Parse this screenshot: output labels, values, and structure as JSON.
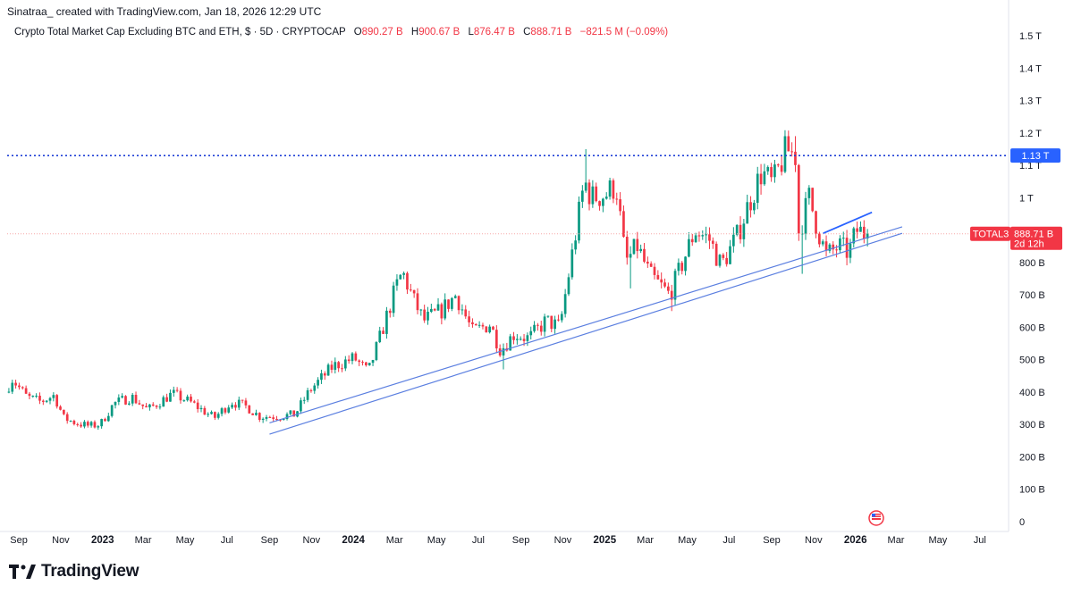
{
  "header": {
    "author_line": "Sinatraa_ created with TradingView.com, Jan 18, 2026 12:29 UTC",
    "symbol_description": "Crypto Total Market Cap Excluding BTC and ETH, $ · 5D · CRYPTOCAP",
    "ohlc": {
      "open_key": "O",
      "open": "890.27 B",
      "high_key": "H",
      "high": "900.67 B",
      "low_key": "L",
      "low": "876.47 B",
      "close_key": "C",
      "close": "888.71 B",
      "change": "−821.5 M (−0.09%)"
    }
  },
  "brand": {
    "name": "TradingView"
  },
  "colors": {
    "up": "#089981",
    "down": "#f23645",
    "trendline": "#2962ff",
    "channel": "#5b7fe0",
    "resistance": "#1e3fd6",
    "price_line": "#f7a8a8",
    "resistance_label_bg": "#2962ff",
    "price_label_bg": "#f23645"
  },
  "chart_data": {
    "type": "candlestick",
    "symbol": "TOTAL3",
    "interval": "5D",
    "y_scale": {
      "min": 0,
      "max": 1500,
      "unit": "B"
    },
    "y_ticks": [
      {
        "value": 1500,
        "label": "1.5 T"
      },
      {
        "value": 1400,
        "label": "1.4 T"
      },
      {
        "value": 1300,
        "label": "1.3 T"
      },
      {
        "value": 1200,
        "label": "1.2 T"
      },
      {
        "value": 1100,
        "label": "1.1 T"
      },
      {
        "value": 1000,
        "label": "1 T"
      },
      {
        "value": 800,
        "label": "800 B"
      },
      {
        "value": 700,
        "label": "700 B"
      },
      {
        "value": 600,
        "label": "600 B"
      },
      {
        "value": 500,
        "label": "500 B"
      },
      {
        "value": 400,
        "label": "400 B"
      },
      {
        "value": 300,
        "label": "300 B"
      },
      {
        "value": 200,
        "label": "200 B"
      },
      {
        "value": 100,
        "label": "100 B"
      },
      {
        "value": 0,
        "label": "0"
      }
    ],
    "x_range": [
      "2022-08-15",
      "2026-08-12"
    ],
    "x_ticks": [
      {
        "date": "2022-09-01",
        "label": "Sep",
        "bold": false
      },
      {
        "date": "2022-11-01",
        "label": "Nov",
        "bold": false
      },
      {
        "date": "2023-01-01",
        "label": "2023",
        "bold": true
      },
      {
        "date": "2023-03-01",
        "label": "Mar",
        "bold": false
      },
      {
        "date": "2023-05-01",
        "label": "May",
        "bold": false
      },
      {
        "date": "2023-07-01",
        "label": "Jul",
        "bold": false
      },
      {
        "date": "2023-09-01",
        "label": "Sep",
        "bold": false
      },
      {
        "date": "2023-11-01",
        "label": "Nov",
        "bold": false
      },
      {
        "date": "2024-01-01",
        "label": "2024",
        "bold": true
      },
      {
        "date": "2024-03-01",
        "label": "Mar",
        "bold": false
      },
      {
        "date": "2024-05-01",
        "label": "May",
        "bold": false
      },
      {
        "date": "2024-07-01",
        "label": "Jul",
        "bold": false
      },
      {
        "date": "2024-09-01",
        "label": "Sep",
        "bold": false
      },
      {
        "date": "2024-11-01",
        "label": "Nov",
        "bold": false
      },
      {
        "date": "2025-01-01",
        "label": "2025",
        "bold": true
      },
      {
        "date": "2025-03-01",
        "label": "Mar",
        "bold": false
      },
      {
        "date": "2025-05-01",
        "label": "May",
        "bold": false
      },
      {
        "date": "2025-07-01",
        "label": "Jul",
        "bold": false
      },
      {
        "date": "2025-09-01",
        "label": "Sep",
        "bold": false
      },
      {
        "date": "2025-11-01",
        "label": "Nov",
        "bold": false
      },
      {
        "date": "2026-01-01",
        "label": "2026",
        "bold": true
      },
      {
        "date": "2026-03-01",
        "label": "Mar",
        "bold": false
      },
      {
        "date": "2026-05-01",
        "label": "May",
        "bold": false
      },
      {
        "date": "2026-07-01",
        "label": "Jul",
        "bold": false
      }
    ],
    "price_path": [
      [
        "2022-08-15",
        400
      ],
      [
        "2022-08-25",
        440
      ],
      [
        "2022-09-15",
        385
      ],
      [
        "2022-10-05",
        370
      ],
      [
        "2022-10-25",
        390
      ],
      [
        "2022-11-08",
        320
      ],
      [
        "2022-11-25",
        305
      ],
      [
        "2022-12-15",
        295
      ],
      [
        "2022-12-31",
        300
      ],
      [
        "2023-01-20",
        365
      ],
      [
        "2023-02-15",
        385
      ],
      [
        "2023-03-10",
        345
      ],
      [
        "2023-04-15",
        395
      ],
      [
        "2023-05-10",
        370
      ],
      [
        "2023-06-15",
        320
      ],
      [
        "2023-07-10",
        370
      ],
      [
        "2023-08-01",
        355
      ],
      [
        "2023-08-20",
        325
      ],
      [
        "2023-09-15",
        325
      ],
      [
        "2023-10-10",
        330
      ],
      [
        "2023-11-01",
        405
      ],
      [
        "2023-12-05",
        480
      ],
      [
        "2024-01-05",
        505
      ],
      [
        "2024-01-25",
        460
      ],
      [
        "2024-02-10",
        560
      ],
      [
        "2024-03-05",
        720
      ],
      [
        "2024-03-15",
        770
      ],
      [
        "2024-04-01",
        680
      ],
      [
        "2024-04-15",
        620
      ],
      [
        "2024-05-10",
        650
      ],
      [
        "2024-06-01",
        700
      ],
      [
        "2024-06-25",
        585
      ],
      [
        "2024-07-20",
        610
      ],
      [
        "2024-08-05",
        530
      ],
      [
        "2024-08-25",
        580
      ],
      [
        "2024-09-15",
        565
      ],
      [
        "2024-10-10",
        620
      ],
      [
        "2024-10-30",
        600
      ],
      [
        "2024-11-15",
        800
      ],
      [
        "2024-12-05",
        1050
      ],
      [
        "2024-12-15",
        1000
      ],
      [
        "2025-01-05",
        1010
      ],
      [
        "2025-01-20",
        1040
      ],
      [
        "2025-02-03",
        800
      ],
      [
        "2025-02-20",
        850
      ],
      [
        "2025-03-10",
        760
      ],
      [
        "2025-04-08",
        700
      ],
      [
        "2025-04-25",
        790
      ],
      [
        "2025-05-15",
        900
      ],
      [
        "2025-06-05",
        870
      ],
      [
        "2025-06-22",
        790
      ],
      [
        "2025-07-15",
        880
      ],
      [
        "2025-08-01",
        980
      ],
      [
        "2025-08-20",
        1080
      ],
      [
        "2025-09-05",
        1040
      ],
      [
        "2025-09-25",
        1150
      ],
      [
        "2025-10-08",
        1130
      ],
      [
        "2025-10-11",
        880
      ],
      [
        "2025-10-28",
        1000
      ],
      [
        "2025-11-10",
        900
      ],
      [
        "2025-11-22",
        820
      ],
      [
        "2025-12-10",
        850
      ],
      [
        "2025-12-25",
        830
      ],
      [
        "2026-01-05",
        900
      ],
      [
        "2026-01-18",
        888.71
      ]
    ],
    "wick_spikes": [
      [
        "2024-08-05",
        470
      ],
      [
        "2024-11-30",
        1150
      ],
      [
        "2025-02-03",
        720
      ],
      [
        "2025-04-08",
        650
      ],
      [
        "2025-10-01",
        1190
      ],
      [
        "2025-10-11",
        765
      ],
      [
        "2025-12-18",
        795
      ]
    ],
    "drawings": {
      "resistance_level": 1130,
      "channel_lower": [
        [
          "2023-09-01",
          270
        ],
        [
          "2026-03-10",
          890
        ]
      ],
      "channel_upper": [
        [
          "2023-09-01",
          305
        ],
        [
          "2026-03-10",
          910
        ]
      ],
      "short_trendline": [
        [
          "2025-11-15",
          890
        ],
        [
          "2026-01-25",
          955
        ]
      ],
      "current_price": 888.71
    },
    "labels": {
      "resistance": "1.13 T",
      "symbol_tag": "TOTAL3",
      "price": "888.71 B",
      "countdown": "2d 12h"
    }
  }
}
